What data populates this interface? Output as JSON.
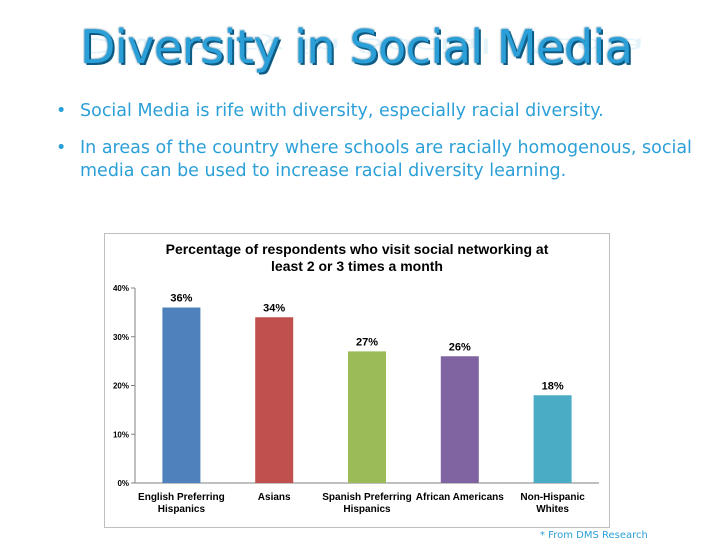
{
  "slide": {
    "title": "Diversity in Social Media",
    "bullets": [
      "Social Media is rife with diversity, especially racial diversity.",
      "In areas of the country where schools are racially homogenous, social media can be used to increase racial diversity learning."
    ],
    "source_note": "* From DMS Research"
  },
  "chart_data": {
    "type": "bar",
    "title_lines": [
      "Percentage of respondents who visit social networking at",
      "least 2 or 3 times a month"
    ],
    "categories": [
      [
        "English Preferring",
        "Hispanics"
      ],
      [
        "Asians"
      ],
      [
        "Spanish Preferring",
        "Hispanics"
      ],
      [
        "African Americans"
      ],
      [
        "Non-Hispanic",
        "Whites"
      ]
    ],
    "values": [
      36,
      34,
      27,
      26,
      18
    ],
    "value_labels": [
      "36%",
      "34%",
      "27%",
      "26%",
      "18%"
    ],
    "colors": [
      "#4f81bd",
      "#c0504d",
      "#9bbb59",
      "#8064a2",
      "#4bacc6"
    ],
    "yticks": [
      0,
      10,
      20,
      30,
      40
    ],
    "ytick_labels": [
      "0%",
      "10%",
      "20%",
      "30%",
      "40%"
    ],
    "ylim": [
      0,
      40
    ],
    "grid": false,
    "legend": "none"
  }
}
